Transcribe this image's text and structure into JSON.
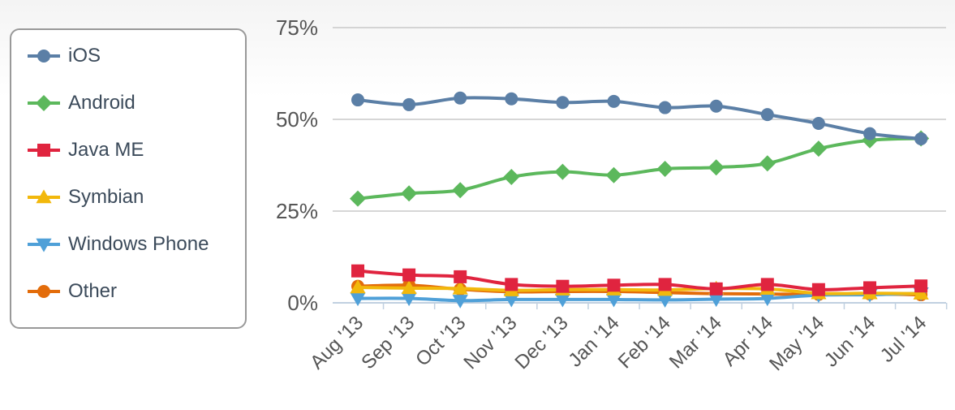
{
  "chart_data": {
    "type": "line",
    "title": "",
    "xlabel": "",
    "ylabel": "",
    "categories": [
      "Aug '13",
      "Sep '13",
      "Oct '13",
      "Nov '13",
      "Dec '13",
      "Jan '14",
      "Feb '14",
      "Mar '14",
      "Apr '14",
      "May '14",
      "Jun '14",
      "Jul '14"
    ],
    "y_ticks": [
      "0%",
      "25%",
      "50%",
      "75%"
    ],
    "ylim": [
      0,
      75
    ],
    "grid": true,
    "legend": "left",
    "series": [
      {
        "name": "iOS",
        "color": "#5b7fa6",
        "marker": "circle",
        "values": [
          55.3,
          54.0,
          55.8,
          55.6,
          54.6,
          54.9,
          53.2,
          53.6,
          51.3,
          48.9,
          46.1,
          44.7
        ]
      },
      {
        "name": "Android",
        "color": "#5cb85c",
        "marker": "diamond",
        "values": [
          28.4,
          29.8,
          30.7,
          34.3,
          35.7,
          34.8,
          36.5,
          36.9,
          38.0,
          42.0,
          44.3,
          44.8
        ]
      },
      {
        "name": "Java ME",
        "color": "#e0243f",
        "marker": "square",
        "values": [
          8.7,
          7.6,
          7.1,
          5.0,
          4.5,
          4.8,
          5.0,
          3.8,
          5.0,
          3.6,
          4.1,
          4.6
        ]
      },
      {
        "name": "Symbian",
        "color": "#f2b80c",
        "marker": "triangle-up",
        "values": [
          4.2,
          4.0,
          3.9,
          3.4,
          3.6,
          3.6,
          3.5,
          3.9,
          3.8,
          2.6,
          2.6,
          2.5
        ]
      },
      {
        "name": "Windows Phone",
        "color": "#4fa0d8",
        "marker": "triangle-down",
        "values": [
          1.2,
          1.2,
          0.6,
          0.9,
          0.9,
          0.9,
          0.8,
          1.0,
          1.2,
          2.1,
          2.2,
          2.6
        ]
      },
      {
        "name": "Other",
        "color": "#e36c0a",
        "marker": "circle",
        "values": [
          4.5,
          4.8,
          3.7,
          3.0,
          3.1,
          3.1,
          2.8,
          2.5,
          2.4,
          2.3,
          2.4,
          2.2
        ]
      }
    ]
  }
}
